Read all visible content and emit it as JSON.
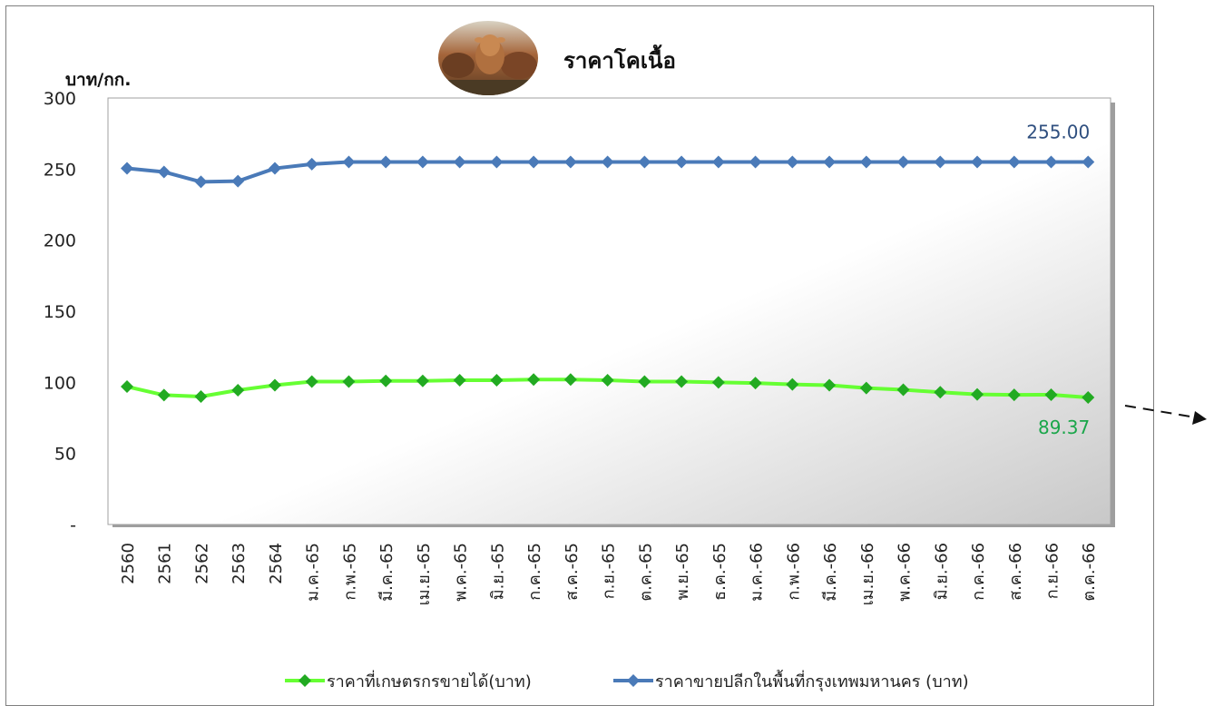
{
  "chart_data": {
    "type": "line",
    "title": "ราคาโคเนื้อ",
    "ylabel": "บาท/กก.",
    "xlabel": "",
    "ylim": [
      0,
      300
    ],
    "yticks": [
      0,
      50,
      100,
      150,
      200,
      250,
      300
    ],
    "ytick_labels": [
      "-",
      "50",
      "100",
      "150",
      "200",
      "250",
      "300"
    ],
    "categories": [
      "2560",
      "2561",
      "2562",
      "2563",
      "2564",
      "ม.ค.-65",
      "ก.พ.-65",
      "มี.ค.-65",
      "เม.ย.-65",
      "พ.ค.-65",
      "มิ.ย.-65",
      "ก.ค.-65",
      "ส.ค.-65",
      "ก.ย.-65",
      "ต.ค.-65",
      "พ.ย.-65",
      "ธ.ค.-65",
      "ม.ค.-66",
      "ก.พ.-66",
      "มี.ค.-66",
      "เม.ย.-66",
      "พ.ค.-66",
      "มิ.ย.-66",
      "ก.ค.-66",
      "ส.ค.-66",
      "ก.ย.-66",
      "ต.ค.-66"
    ],
    "series": [
      {
        "name": "ราคาที่เกษตรกรขายได้(บาท)",
        "color": "#33cc33",
        "values": [
          97.0,
          91.0,
          90.0,
          94.5,
          98.0,
          100.5,
          100.5,
          101.0,
          101.0,
          101.5,
          101.5,
          102.0,
          102.0,
          101.5,
          100.5,
          100.5,
          100.0,
          99.5,
          98.5,
          98.0,
          96.0,
          94.8,
          93.0,
          91.5,
          91.2,
          91.3,
          89.37
        ],
        "end_label": "89.37"
      },
      {
        "name": "ราคาขายปลีกในพื้นที่กรุงเทพมหานคร  (บาท)",
        "color": "#4a7ab8",
        "values": [
          250.5,
          248.0,
          241.0,
          241.5,
          250.5,
          253.5,
          255.0,
          255.0,
          255.0,
          255.0,
          255.0,
          255.0,
          255.0,
          255.0,
          255.0,
          255.0,
          255.0,
          255.0,
          255.0,
          255.0,
          255.0,
          255.0,
          255.0,
          255.0,
          255.0,
          255.0,
          255.0
        ],
        "end_label": "255.00"
      }
    ],
    "grid": false,
    "legend": "bottom"
  },
  "icons": {
    "title_image": "cattle-photo-icon",
    "annotation": "dashed-arrow-icon"
  }
}
